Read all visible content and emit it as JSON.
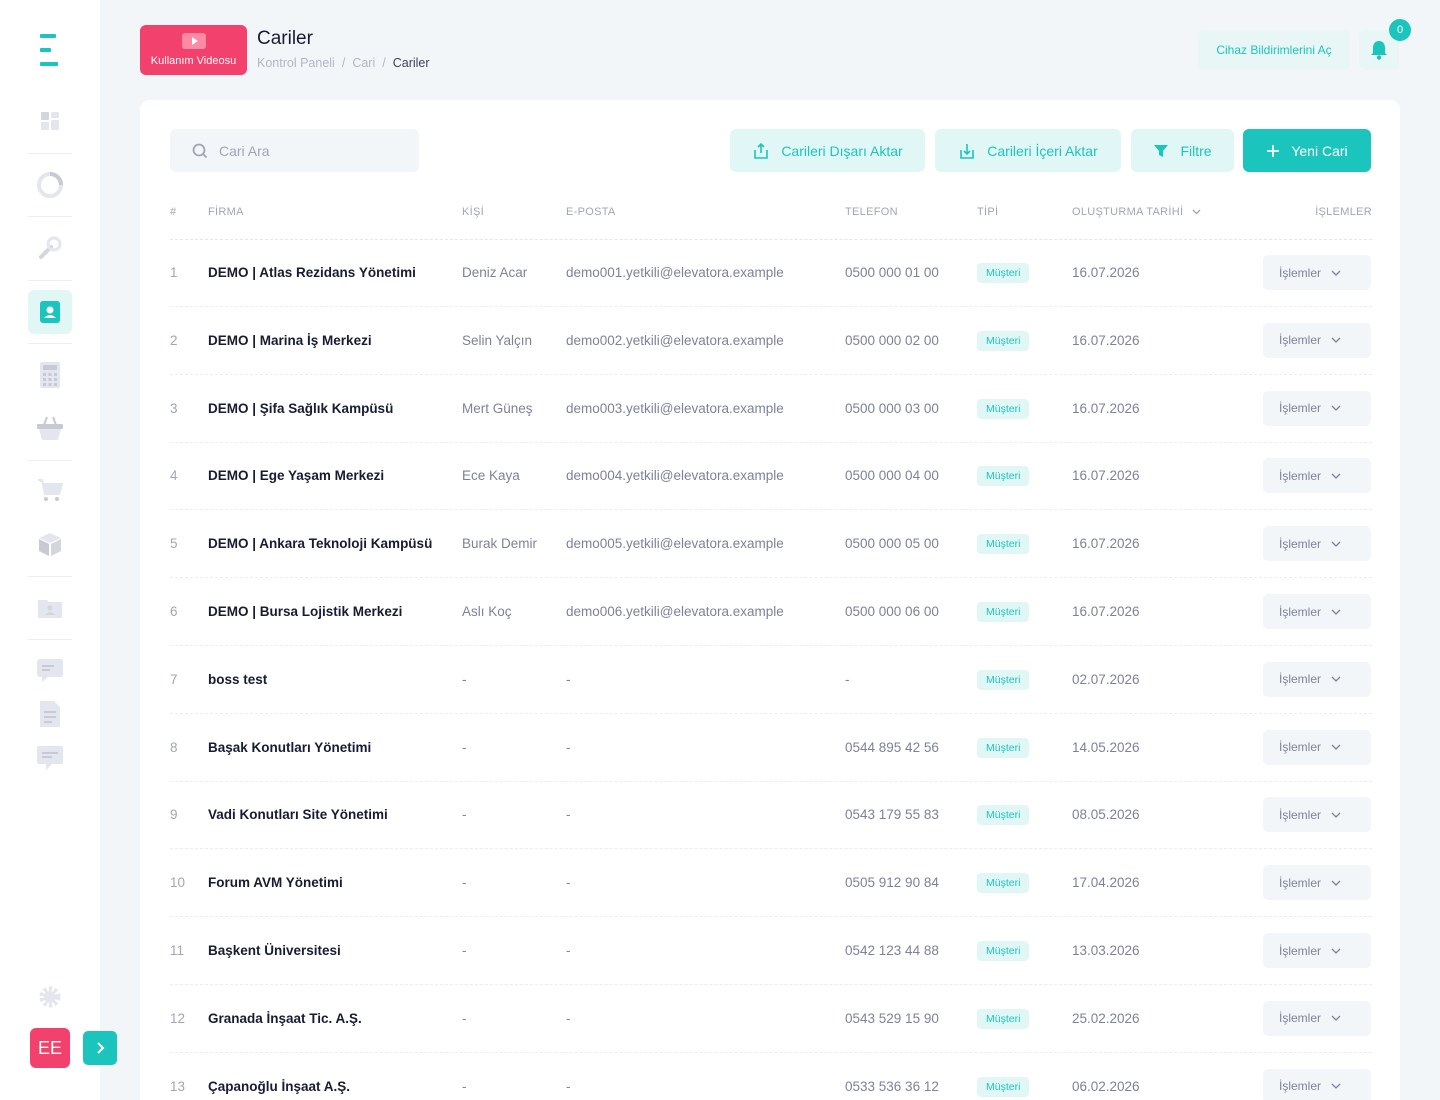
{
  "sidebar": {
    "items": [
      "dashboard-icon",
      "chart-icon",
      "wrench-icon",
      "contacts-icon",
      "calculator-icon",
      "basket-icon",
      "cart-icon",
      "box-icon",
      "folder-icon",
      "message-icon",
      "document-icon",
      "comment-icon"
    ],
    "active": "contacts-icon",
    "avatar_initials": "EE"
  },
  "header": {
    "video_label": "Kullanım Videosu",
    "title": "Cariler",
    "breadcrumb": [
      "Kontrol Paneli",
      "Cari",
      "Cariler"
    ],
    "notifications_button": "Cihaz Bildirimlerini Aç",
    "bell_count": "0"
  },
  "toolbar": {
    "search_placeholder": "Cari Ara",
    "export_label": "Carileri Dışarı Aktar",
    "import_label": "Carileri İçeri Aktar",
    "filter_label": "Filtre",
    "new_label": "Yeni Cari"
  },
  "table": {
    "columns": [
      "#",
      "FİRMA",
      "KİŞİ",
      "E-POSTA",
      "TELEFON",
      "TİPİ",
      "OLUŞTURMA TARİHİ",
      "İŞLEMLER"
    ],
    "rows": [
      {
        "idx": "1",
        "firm": "DEMO | Atlas Rezidans Yönetimi",
        "person": "Deniz Acar",
        "email": "demo001.yetkili@elevatora.example",
        "phone": "0500 000 01 00",
        "type": "Müşteri",
        "date": "16.07.2026",
        "ops": "İşlemler"
      },
      {
        "idx": "2",
        "firm": "DEMO | Marina İş Merkezi",
        "person": "Selin Yalçın",
        "email": "demo002.yetkili@elevatora.example",
        "phone": "0500 000 02 00",
        "type": "Müşteri",
        "date": "16.07.2026",
        "ops": "İşlemler"
      },
      {
        "idx": "3",
        "firm": "DEMO | Şifa Sağlık Kampüsü",
        "person": "Mert Güneş",
        "email": "demo003.yetkili@elevatora.example",
        "phone": "0500 000 03 00",
        "type": "Müşteri",
        "date": "16.07.2026",
        "ops": "İşlemler"
      },
      {
        "idx": "4",
        "firm": "DEMO | Ege Yaşam Merkezi",
        "person": "Ece Kaya",
        "email": "demo004.yetkili@elevatora.example",
        "phone": "0500 000 04 00",
        "type": "Müşteri",
        "date": "16.07.2026",
        "ops": "İşlemler"
      },
      {
        "idx": "5",
        "firm": "DEMO | Ankara Teknoloji Kampüsü",
        "person": "Burak Demir",
        "email": "demo005.yetkili@elevatora.example",
        "phone": "0500 000 05 00",
        "type": "Müşteri",
        "date": "16.07.2026",
        "ops": "İşlemler"
      },
      {
        "idx": "6",
        "firm": "DEMO | Bursa Lojistik Merkezi",
        "person": "Aslı Koç",
        "email": "demo006.yetkili@elevatora.example",
        "phone": "0500 000 06 00",
        "type": "Müşteri",
        "date": "16.07.2026",
        "ops": "İşlemler"
      },
      {
        "idx": "7",
        "firm": "boss test",
        "person": "-",
        "email": "-",
        "phone": "-",
        "type": "Müşteri",
        "date": "02.07.2026",
        "ops": "İşlemler"
      },
      {
        "idx": "8",
        "firm": "Başak Konutları Yönetimi",
        "person": "-",
        "email": "-",
        "phone": "0544 895 42 56",
        "type": "Müşteri",
        "date": "14.05.2026",
        "ops": "İşlemler"
      },
      {
        "idx": "9",
        "firm": "Vadi Konutları Site Yönetimi",
        "person": "-",
        "email": "-",
        "phone": "0543 179 55 83",
        "type": "Müşteri",
        "date": "08.05.2026",
        "ops": "İşlemler"
      },
      {
        "idx": "10",
        "firm": "Forum AVM Yönetimi",
        "person": "-",
        "email": "-",
        "phone": "0505 912 90 84",
        "type": "Müşteri",
        "date": "17.04.2026",
        "ops": "İşlemler"
      },
      {
        "idx": "11",
        "firm": "Başkent Üniversitesi",
        "person": "-",
        "email": "-",
        "phone": "0542 123 44 88",
        "type": "Müşteri",
        "date": "13.03.2026",
        "ops": "İşlemler"
      },
      {
        "idx": "12",
        "firm": "Granada İnşaat Tic. A.Ş.",
        "person": "-",
        "email": "-",
        "phone": "0543 529 15 90",
        "type": "Müşteri",
        "date": "25.02.2026",
        "ops": "İşlemler"
      },
      {
        "idx": "13",
        "firm": "Çapanoğlu İnşaat A.Ş.",
        "person": "-",
        "email": "-",
        "phone": "0533 536 36 12",
        "type": "Müşteri",
        "date": "06.02.2026",
        "ops": "İşlemler"
      }
    ]
  },
  "colors": {
    "accent": "#1bc5bd",
    "danger": "#f1416c",
    "background": "#f3f6f9"
  }
}
